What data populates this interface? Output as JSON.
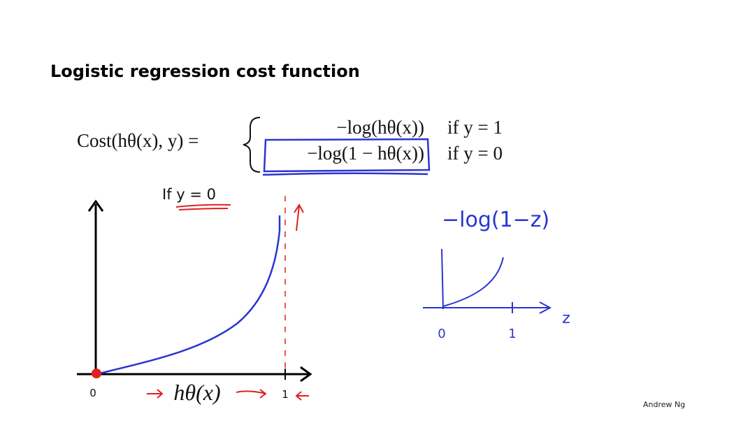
{
  "slide": {
    "title": "Logistic regression cost function",
    "formula": {
      "lhs": "Cost(hθ(x), y) =",
      "cases": [
        {
          "expr": "−log(hθ(x))",
          "condition": "if y = 1"
        },
        {
          "expr": "−log(1 − hθ(x))",
          "condition": "if y = 0"
        }
      ]
    },
    "plot": {
      "label": "If y = 0",
      "x_origin": "0",
      "x_one": "1",
      "x_label": "hθ(x)"
    },
    "sketch": {
      "label": "−log(1−z)",
      "x_origin": "0",
      "x_one": "1",
      "x_var": "z"
    },
    "footer": "Andrew Ng"
  }
}
